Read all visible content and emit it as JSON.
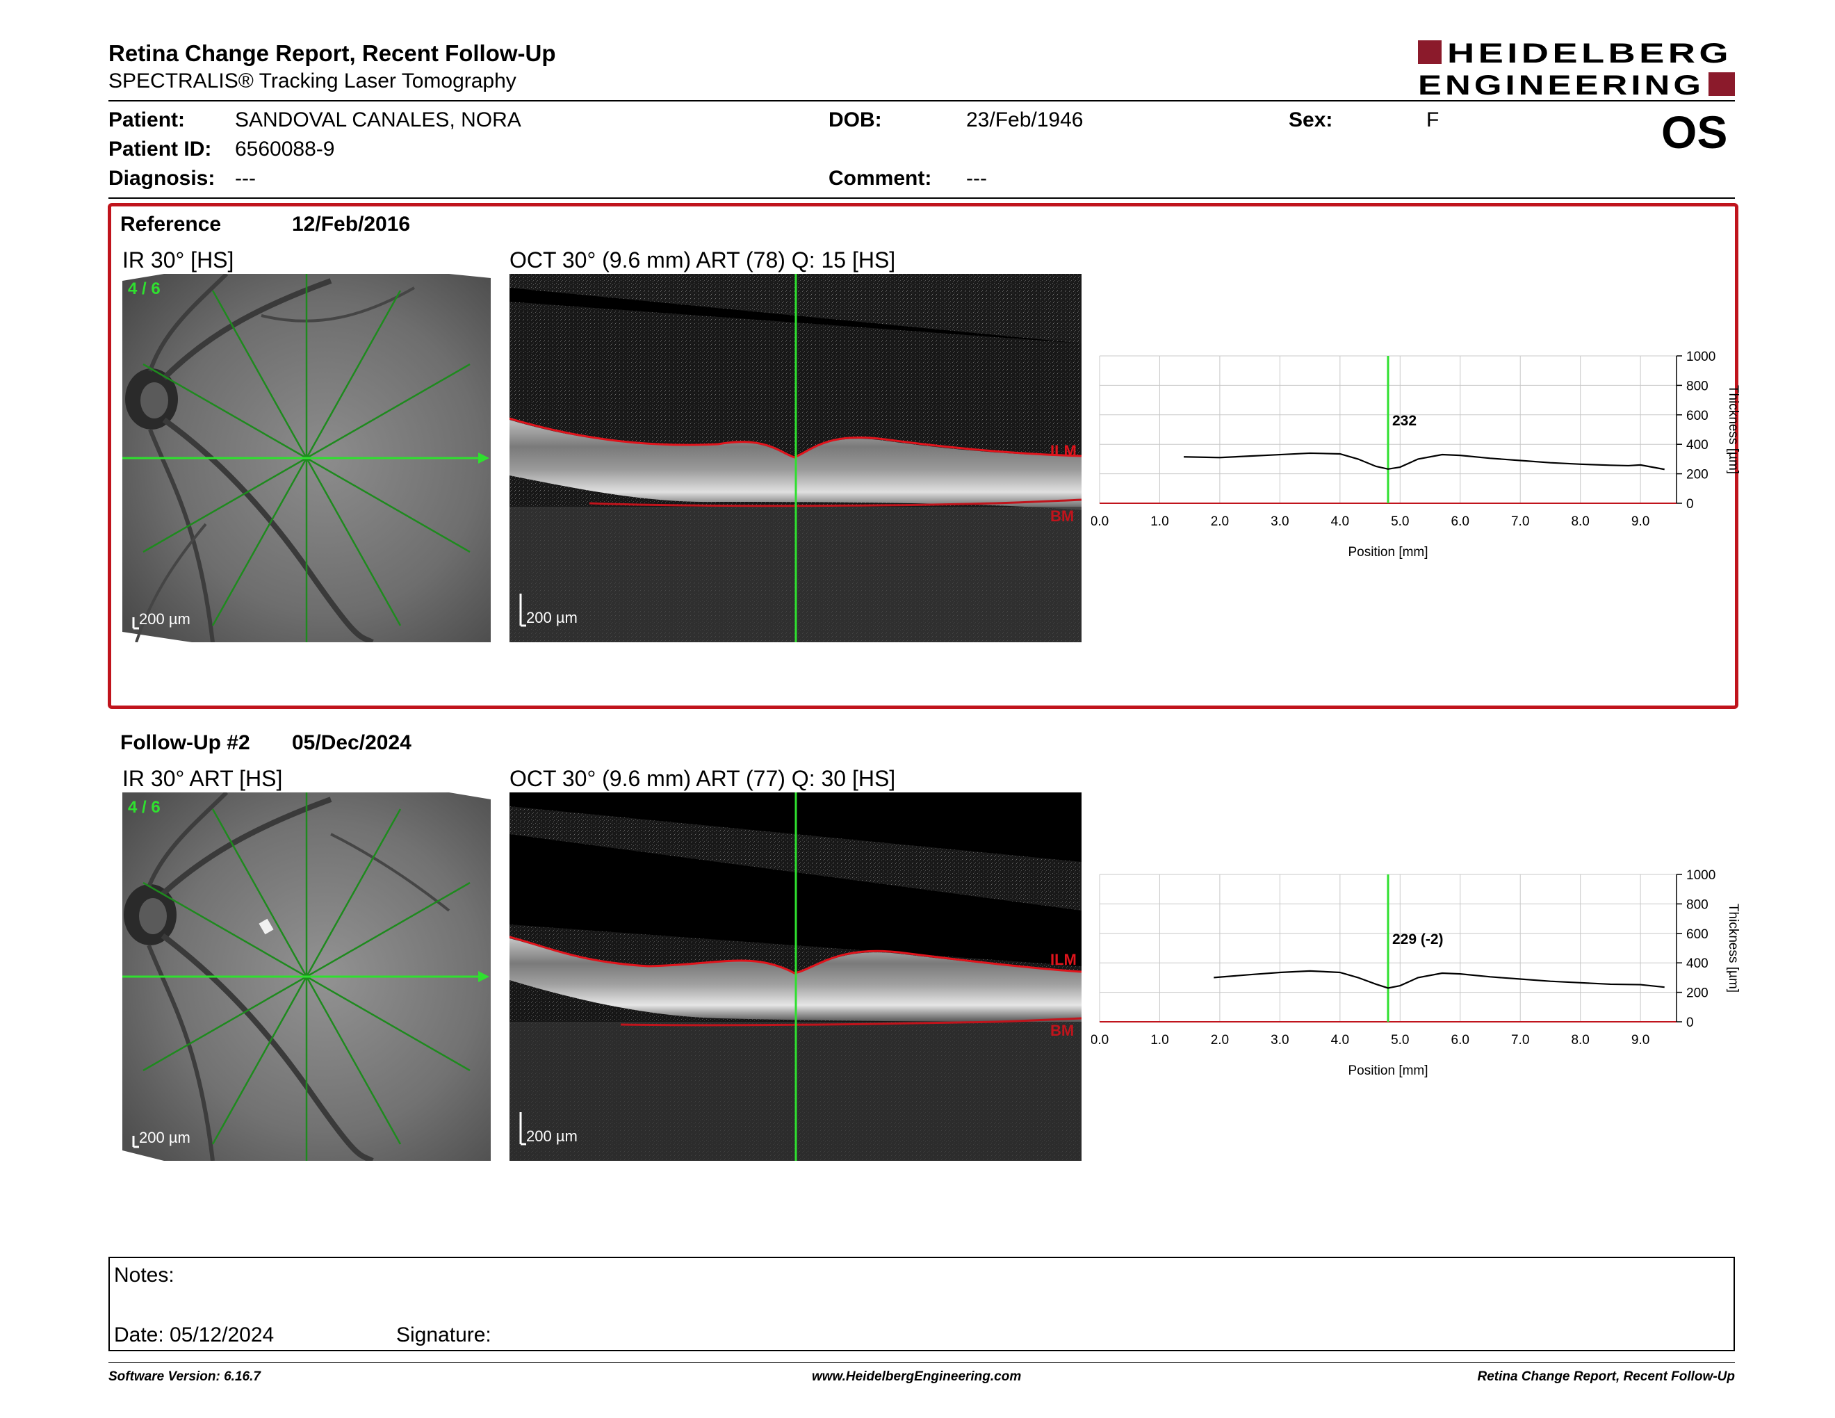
{
  "header": {
    "title": "Retina Change Report, Recent Follow-Up",
    "subtitle": "SPECTRALIS® Tracking Laser Tomography",
    "logo_line1": "HEIDELBERG",
    "logo_line2": "ENGINEERING",
    "eye": "OS"
  },
  "patient": {
    "patient_label": "Patient:",
    "patient_value": "SANDOVAL CANALES, NORA",
    "id_label": "Patient ID:",
    "id_value": "6560088-9",
    "diagnosis_label": "Diagnosis:",
    "diagnosis_value": "---",
    "dob_label": "DOB:",
    "dob_value": "23/Feb/1946",
    "comment_label": "Comment:",
    "comment_value": "---",
    "sex_label": "Sex:",
    "sex_value": "F"
  },
  "reference": {
    "label": "Reference",
    "date": "12/Feb/2016",
    "ir_title": "IR 30° [HS]",
    "ir_counter": "4 / 6",
    "ir_scale": "200 µm",
    "oct_title": "OCT 30° (9.6 mm) ART (78) Q: 15 [HS]",
    "oct_scale": "200 µm",
    "ilm_label": "ILM",
    "bm_label": "BM"
  },
  "followup": {
    "label": "Follow-Up #2",
    "date": "05/Dec/2024",
    "ir_title": "IR 30° ART [HS]",
    "ir_counter": "4 / 6",
    "ir_scale": "200 µm",
    "oct_title": "OCT 30° (9.6 mm) ART (77) Q: 30 [HS]",
    "oct_scale": "200 µm",
    "ilm_label": "ILM",
    "bm_label": "BM"
  },
  "chart_data": [
    {
      "type": "line",
      "xlabel": "Position [mm]",
      "ylabel": "Thickness [µm]",
      "xticks": [
        "0.0",
        "1.0",
        "2.0",
        "3.0",
        "4.0",
        "5.0",
        "6.0",
        "7.0",
        "8.0",
        "9.0"
      ],
      "yticks": [
        "0",
        "200",
        "400",
        "600",
        "800",
        "1000"
      ],
      "xlim": [
        0,
        9.6
      ],
      "ylim": [
        0,
        1000
      ],
      "grid": true,
      "cursor_x": 4.8,
      "cursor_label": "232",
      "series": [
        {
          "x": [
            1.4,
            2.0,
            2.5,
            3.0,
            3.5,
            4.0,
            4.3,
            4.6,
            4.8,
            5.0,
            5.3,
            5.7,
            6.0,
            6.5,
            7.0,
            7.5,
            8.0,
            8.5,
            8.8,
            9.0,
            9.4
          ],
          "values": [
            315,
            310,
            320,
            330,
            340,
            335,
            300,
            250,
            232,
            245,
            300,
            330,
            325,
            305,
            290,
            275,
            265,
            258,
            255,
            260,
            230
          ]
        }
      ]
    },
    {
      "type": "line",
      "xlabel": "Position [mm]",
      "ylabel": "Thickness [µm]",
      "xticks": [
        "0.0",
        "1.0",
        "2.0",
        "3.0",
        "4.0",
        "5.0",
        "6.0",
        "7.0",
        "8.0",
        "9.0"
      ],
      "yticks": [
        "0",
        "200",
        "400",
        "600",
        "800",
        "1000"
      ],
      "xlim": [
        0,
        9.6
      ],
      "ylim": [
        0,
        1000
      ],
      "grid": true,
      "cursor_x": 4.8,
      "cursor_label": "229 (-2)",
      "series": [
        {
          "x": [
            1.9,
            2.5,
            3.0,
            3.5,
            4.0,
            4.3,
            4.6,
            4.8,
            5.0,
            5.3,
            5.7,
            6.0,
            6.5,
            7.0,
            7.5,
            8.0,
            8.5,
            9.0,
            9.4
          ],
          "values": [
            300,
            320,
            335,
            345,
            335,
            300,
            255,
            229,
            245,
            300,
            330,
            325,
            305,
            290,
            275,
            265,
            255,
            252,
            235
          ]
        }
      ]
    }
  ],
  "notes": {
    "notes_label": "Notes:",
    "date_label": "Date: 05/12/2024",
    "signature_label": "Signature:"
  },
  "footer": {
    "software": "Software Version: 6.16.7",
    "website": "www.HeidelbergEngineering.com",
    "report": "Retina Change Report, Recent Follow-Up"
  }
}
